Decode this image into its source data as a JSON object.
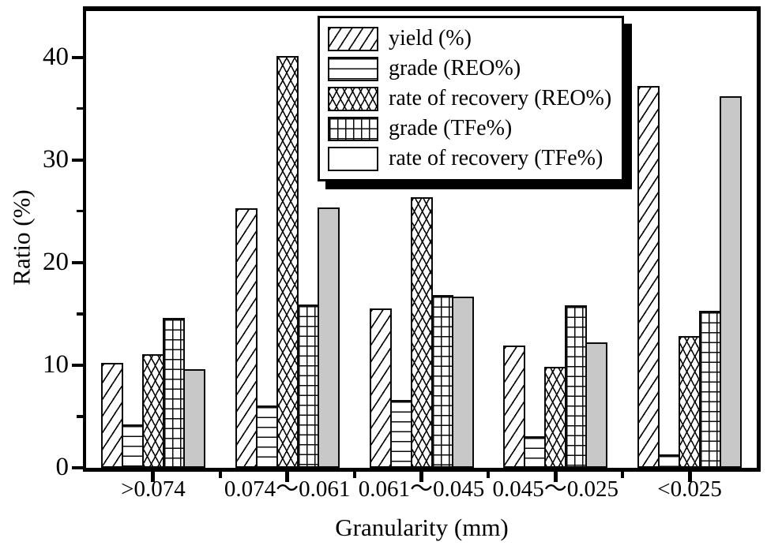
{
  "figure": {
    "background": "#ffffff",
    "frame_color": "#000000"
  },
  "chart_data": {
    "type": "bar",
    "title": "",
    "xlabel": "Granularity (mm)",
    "ylabel": "Ratio (%)",
    "ylim": [
      0,
      44.5
    ],
    "yticks_major": [
      0,
      10,
      20,
      30,
      40
    ],
    "yticks_minor": [
      5,
      15,
      25,
      35
    ],
    "grid": false,
    "legend_position": "top-center-inside",
    "categories": [
      ">0.074",
      "0.074～0.061",
      "0.061～0.045",
      "0.045～0.025",
      "<0.025"
    ],
    "series": [
      {
        "name": "yield (%)",
        "pattern": "diag",
        "values": [
          10.2,
          25.3,
          15.5,
          11.9,
          37.2
        ]
      },
      {
        "name": "grade (REO%)",
        "pattern": "horiz",
        "values": [
          4.2,
          6.1,
          6.6,
          3.1,
          1.3
        ]
      },
      {
        "name": "rate of recovery (REO%)",
        "pattern": "cross",
        "values": [
          11.1,
          40.1,
          26.4,
          9.8,
          12.8
        ]
      },
      {
        "name": "grade (TFe%)",
        "pattern": "grid",
        "values": [
          14.6,
          15.9,
          16.8,
          15.8,
          15.3
        ]
      },
      {
        "name": "rate of recovery (TFe%)",
        "pattern": "solid",
        "values": [
          9.6,
          25.4,
          16.7,
          12.2,
          36.2
        ]
      }
    ],
    "colors": {
      "bar_fill": "#ffffff",
      "hatch_line": "#0a0a0a",
      "solid_gray": "#c8c8c8",
      "axis": "#000000"
    }
  }
}
